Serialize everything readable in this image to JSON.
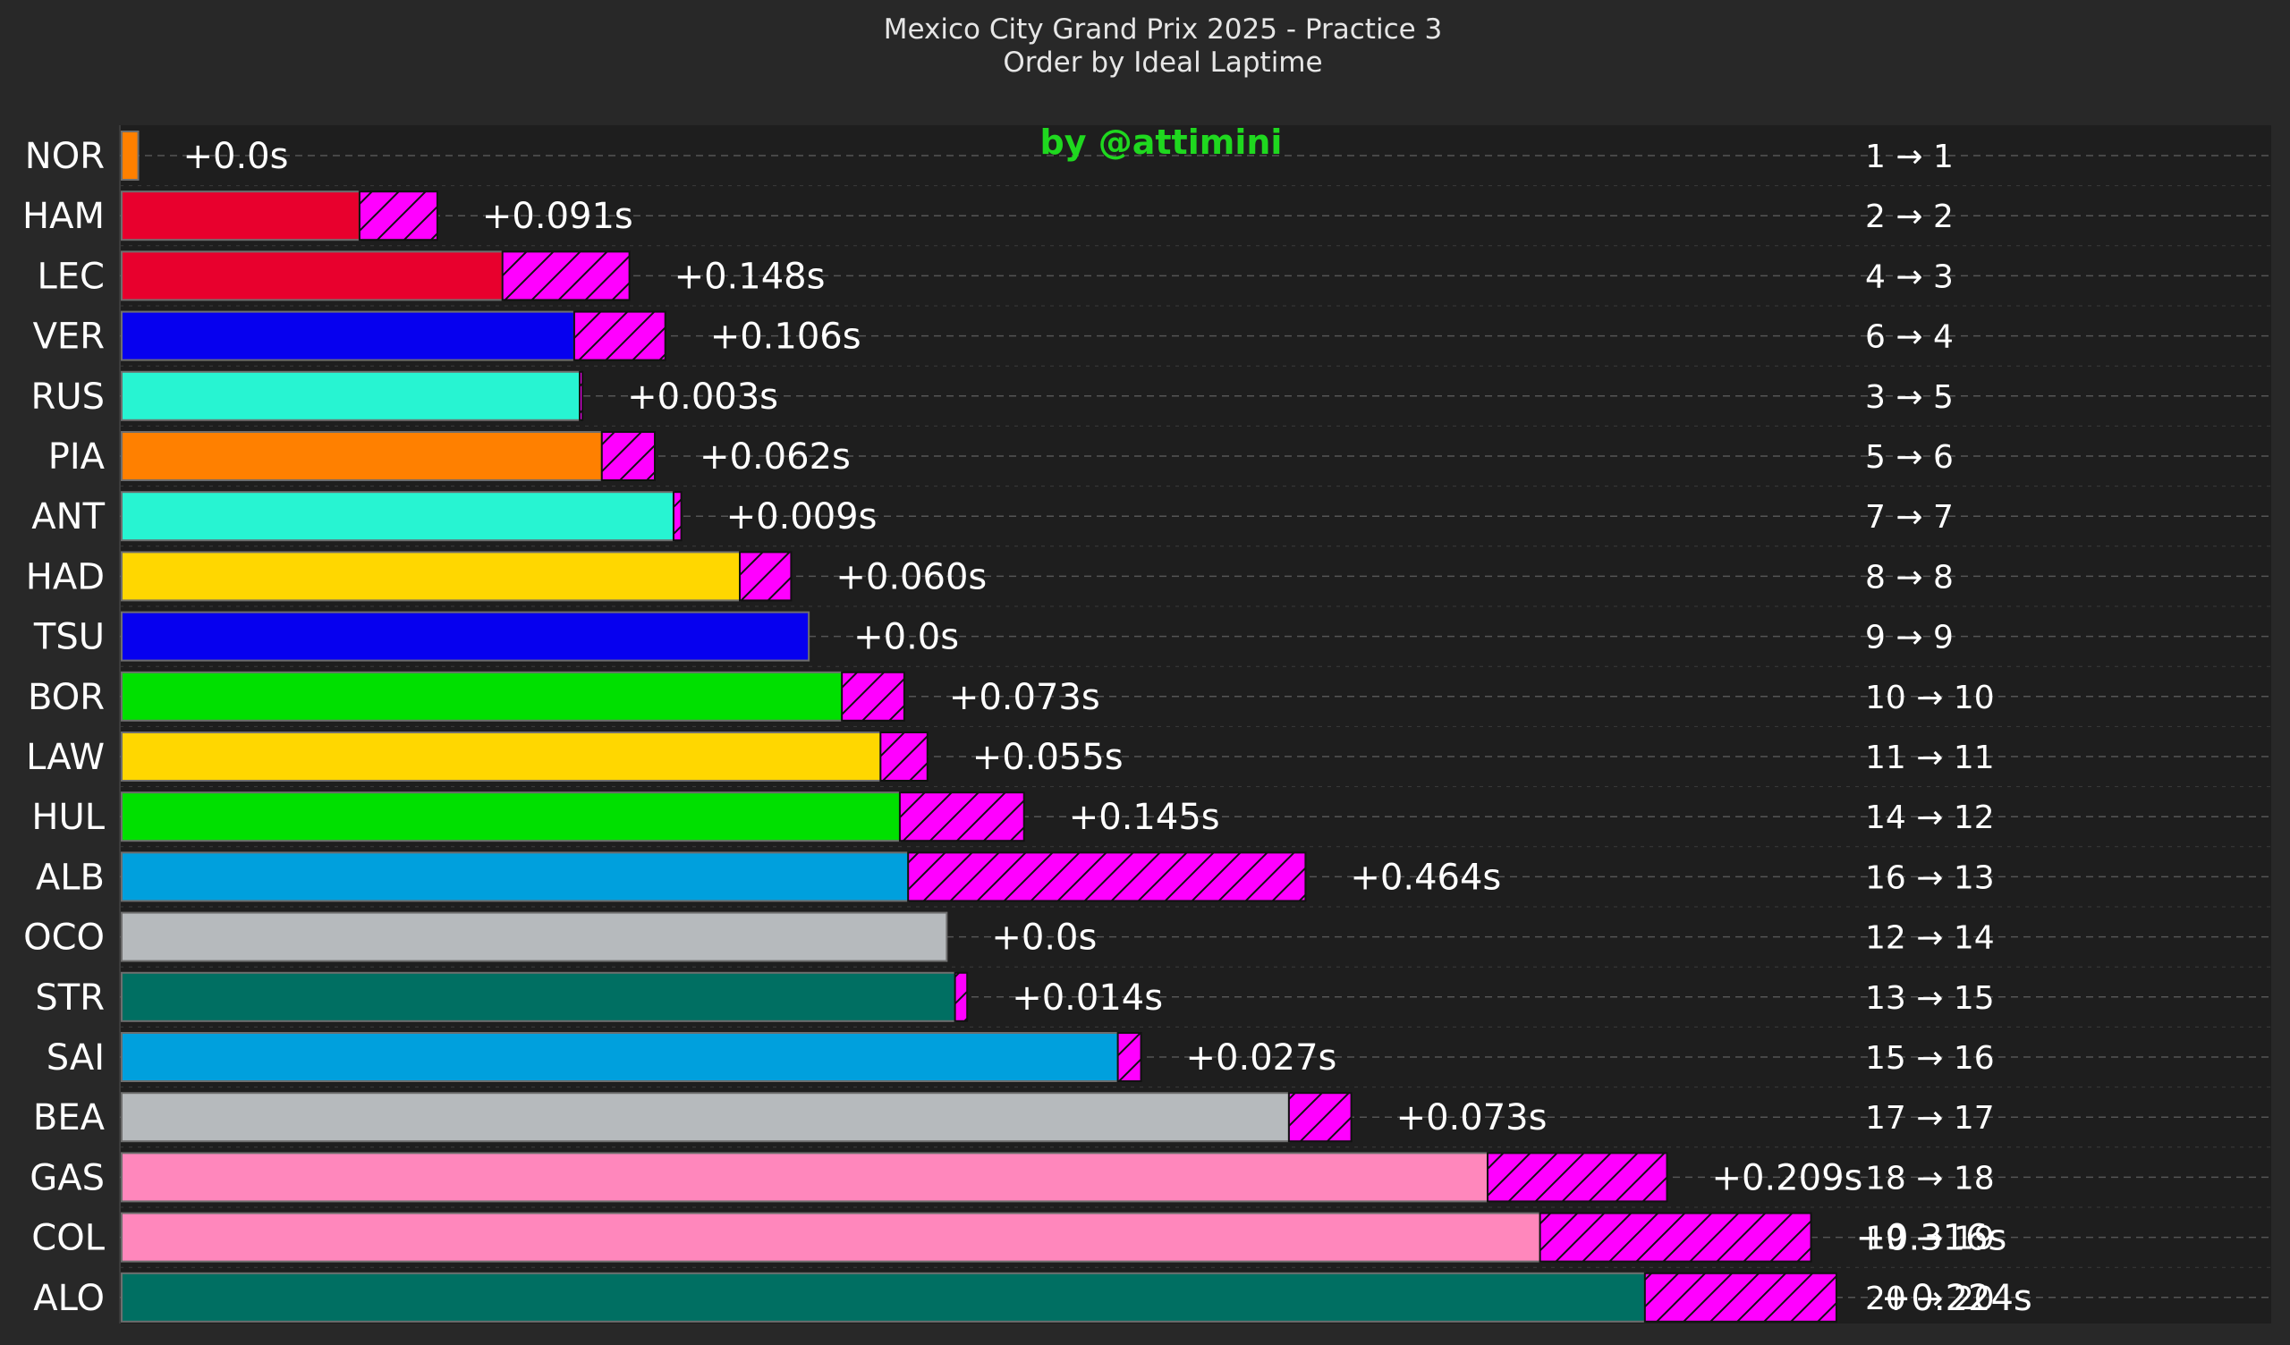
{
  "chart_data": {
    "type": "bar",
    "orientation": "horizontal",
    "title": "Mexico City Grand Prix 2025 - Practice 3",
    "subtitle": "Order by Ideal Laptime",
    "credit": "by @attimini",
    "grid": true,
    "categories": [
      "NOR",
      "HAM",
      "LEC",
      "VER",
      "RUS",
      "PIA",
      "ANT",
      "HAD",
      "TSU",
      "BOR",
      "LAW",
      "HUL",
      "ALB",
      "OCO",
      "STR",
      "SAI",
      "BEA",
      "GAS",
      "COL",
      "ALO"
    ],
    "series": [
      {
        "name": "",
        "values": [
          0.03,
          0.431,
          0.69,
          0.82,
          0.83,
          0.87,
          1.0,
          1.12,
          1.245,
          1.305,
          1.375,
          1.41,
          1.425,
          1.495,
          1.51,
          1.805,
          2.115,
          2.475,
          2.57,
          2.76
        ],
        "colors": [
          "#ff8000",
          "#e8002d",
          "#e8002d",
          "#0600ef",
          "#27f4d2",
          "#ff8000",
          "#27f4d2",
          "#ffd700",
          "#0600ef",
          "#00e000",
          "#ffd700",
          "#00e000",
          "#00a0dd",
          "#b6babd",
          "#006f62",
          "#00a0dd",
          "#b6babd",
          "#ff87bc",
          "#ff87bc",
          "#006f62"
        ]
      },
      {
        "name": "",
        "values": [
          0.0,
          0.141,
          0.23,
          0.165,
          0.005,
          0.096,
          0.014,
          0.093,
          0.0,
          0.113,
          0.085,
          0.225,
          0.72,
          0.0,
          0.022,
          0.042,
          0.113,
          0.325,
          0.491,
          0.347
        ],
        "color": "#ff00ff",
        "hatch": true
      }
    ],
    "delta_labels": [
      "+0.0s",
      "+0.091s",
      "+0.148s",
      "+0.106s",
      "+0.003s",
      "+0.062s",
      "+0.009s",
      "+0.060s",
      "+0.0s",
      "+0.073s",
      "+0.055s",
      "+0.145s",
      "+0.464s",
      "+0.0s",
      "+0.014s",
      "+0.027s",
      "+0.073s",
      "+0.209s",
      "+0.316s",
      "+0.224s"
    ],
    "position_labels": [
      "1 → 1",
      "2 → 2",
      "4 → 3",
      "6 → 4",
      "3 → 5",
      "5 → 6",
      "7 → 7",
      "8 → 8",
      "9 → 9",
      "10 → 10",
      "11 → 11",
      "14 → 12",
      "16 → 13",
      "12 → 14",
      "13 → 15",
      "15 → 16",
      "17 → 17",
      "18 → 18",
      "19 → 19",
      "20 → 20"
    ],
    "xlim": [
      0,
      3.89
    ]
  }
}
